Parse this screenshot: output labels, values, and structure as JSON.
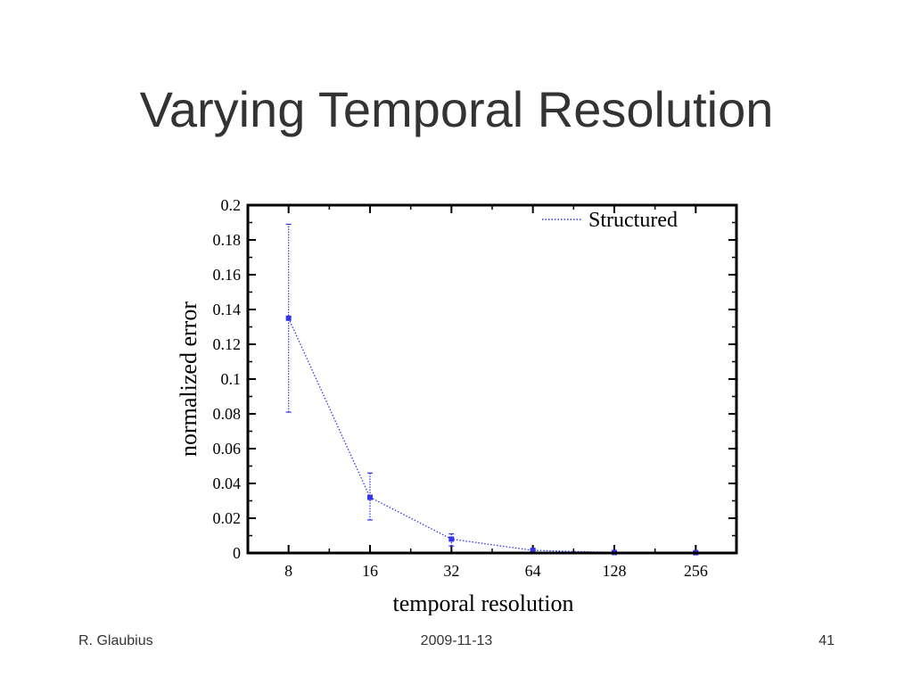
{
  "slide": {
    "title": "Varying Temporal Resolution",
    "footer_left": "R. Glaubius",
    "footer_center": "2009-11-13",
    "footer_right": "41"
  },
  "chart_data": {
    "type": "line",
    "xscale": "log2",
    "x": [
      8,
      16,
      32,
      64,
      128,
      256
    ],
    "x_tick_labels": [
      "8",
      "16",
      "32",
      "64",
      "128",
      "256"
    ],
    "xlabel": "temporal resolution",
    "ylabel": "normalized error",
    "ylim": [
      0,
      0.2
    ],
    "y_ticks": [
      0,
      0.02,
      0.04,
      0.06,
      0.08,
      0.1,
      0.12,
      0.14,
      0.16,
      0.18,
      0.2
    ],
    "y_tick_labels": [
      "0",
      "0.02",
      "0.04",
      "0.06",
      "0.08",
      "0.1",
      "0.12",
      "0.14",
      "0.16",
      "0.18",
      "0.2"
    ],
    "grid": false,
    "legend_position": "top-right",
    "series": [
      {
        "name": "Structured",
        "color": "#3333ee",
        "line_style": "dotted",
        "values": [
          0.135,
          0.032,
          0.008,
          0.0015,
          0.0003,
          0.0002
        ],
        "error_low": [
          0.081,
          0.019,
          0.004,
          0.001,
          0.0002,
          0.0001
        ],
        "error_high": [
          0.189,
          0.046,
          0.011,
          0.002,
          0.0005,
          0.0003
        ]
      }
    ]
  }
}
